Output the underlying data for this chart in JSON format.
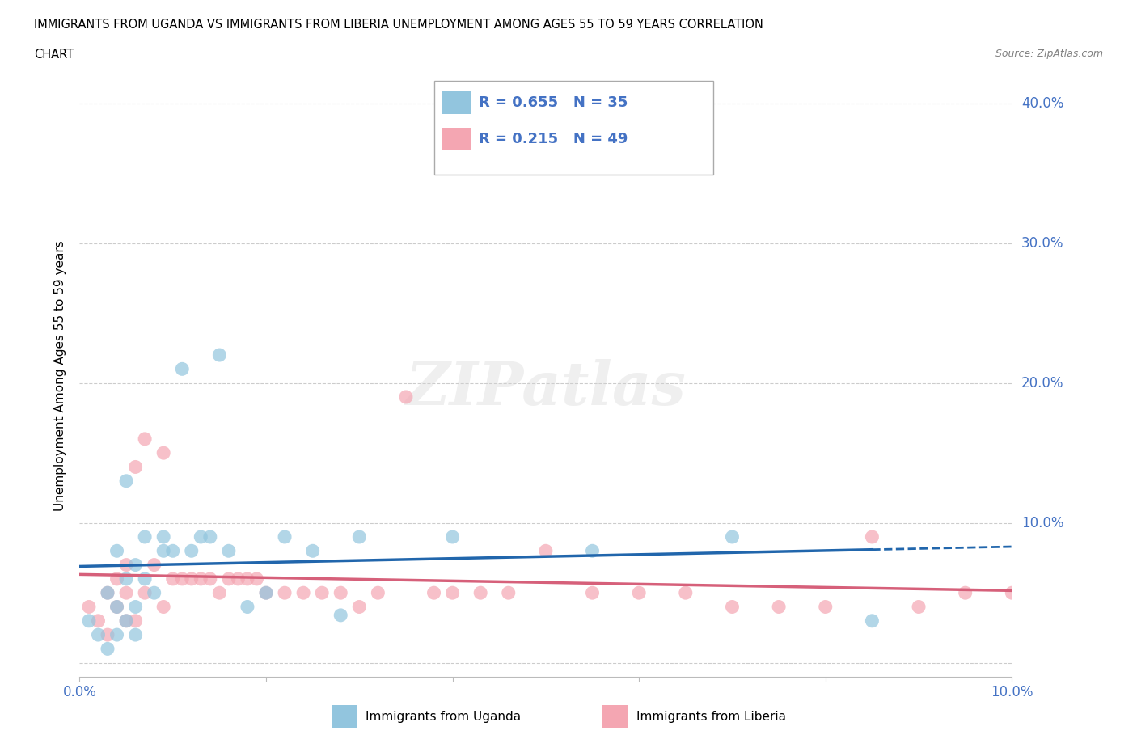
{
  "title_line1": "IMMIGRANTS FROM UGANDA VS IMMIGRANTS FROM LIBERIA UNEMPLOYMENT AMONG AGES 55 TO 59 YEARS CORRELATION",
  "title_line2": "CHART",
  "source": "Source: ZipAtlas.com",
  "ylabel": "Unemployment Among Ages 55 to 59 years",
  "xlabel_uganda": "Immigrants from Uganda",
  "xlabel_liberia": "Immigrants from Liberia",
  "xlim": [
    0.0,
    0.1
  ],
  "ylim": [
    -0.01,
    0.42
  ],
  "uganda_R": 0.655,
  "uganda_N": 35,
  "liberia_R": 0.215,
  "liberia_N": 49,
  "uganda_color": "#92c5de",
  "liberia_color": "#f4a6b2",
  "uganda_line_color": "#2166ac",
  "liberia_line_color": "#d6607a",
  "tick_color": "#4472c4",
  "watermark": "ZIPatlas",
  "uganda_x": [
    0.001,
    0.002,
    0.003,
    0.003,
    0.004,
    0.004,
    0.004,
    0.005,
    0.005,
    0.005,
    0.006,
    0.006,
    0.006,
    0.007,
    0.007,
    0.008,
    0.009,
    0.009,
    0.01,
    0.011,
    0.012,
    0.013,
    0.014,
    0.015,
    0.016,
    0.018,
    0.02,
    0.022,
    0.025,
    0.028,
    0.03,
    0.04,
    0.055,
    0.07,
    0.085
  ],
  "uganda_y": [
    0.03,
    0.02,
    0.01,
    0.05,
    0.02,
    0.08,
    0.04,
    0.03,
    0.13,
    0.06,
    0.04,
    0.02,
    0.07,
    0.06,
    0.09,
    0.05,
    0.08,
    0.09,
    0.08,
    0.21,
    0.08,
    0.09,
    0.09,
    0.22,
    0.08,
    0.04,
    0.05,
    0.09,
    0.08,
    0.034,
    0.09,
    0.09,
    0.08,
    0.09,
    0.03
  ],
  "liberia_x": [
    0.001,
    0.002,
    0.003,
    0.003,
    0.004,
    0.004,
    0.005,
    0.005,
    0.005,
    0.006,
    0.006,
    0.007,
    0.007,
    0.008,
    0.009,
    0.009,
    0.01,
    0.011,
    0.012,
    0.013,
    0.014,
    0.015,
    0.016,
    0.017,
    0.018,
    0.019,
    0.02,
    0.022,
    0.024,
    0.026,
    0.028,
    0.03,
    0.032,
    0.035,
    0.038,
    0.04,
    0.043,
    0.046,
    0.05,
    0.055,
    0.06,
    0.065,
    0.07,
    0.075,
    0.08,
    0.085,
    0.09,
    0.095,
    0.1
  ],
  "liberia_y": [
    0.04,
    0.03,
    0.05,
    0.02,
    0.06,
    0.04,
    0.05,
    0.03,
    0.07,
    0.03,
    0.14,
    0.05,
    0.16,
    0.07,
    0.15,
    0.04,
    0.06,
    0.06,
    0.06,
    0.06,
    0.06,
    0.05,
    0.06,
    0.06,
    0.06,
    0.06,
    0.05,
    0.05,
    0.05,
    0.05,
    0.05,
    0.04,
    0.05,
    0.19,
    0.05,
    0.05,
    0.05,
    0.05,
    0.08,
    0.05,
    0.05,
    0.05,
    0.04,
    0.04,
    0.04,
    0.09,
    0.04,
    0.05,
    0.05
  ]
}
